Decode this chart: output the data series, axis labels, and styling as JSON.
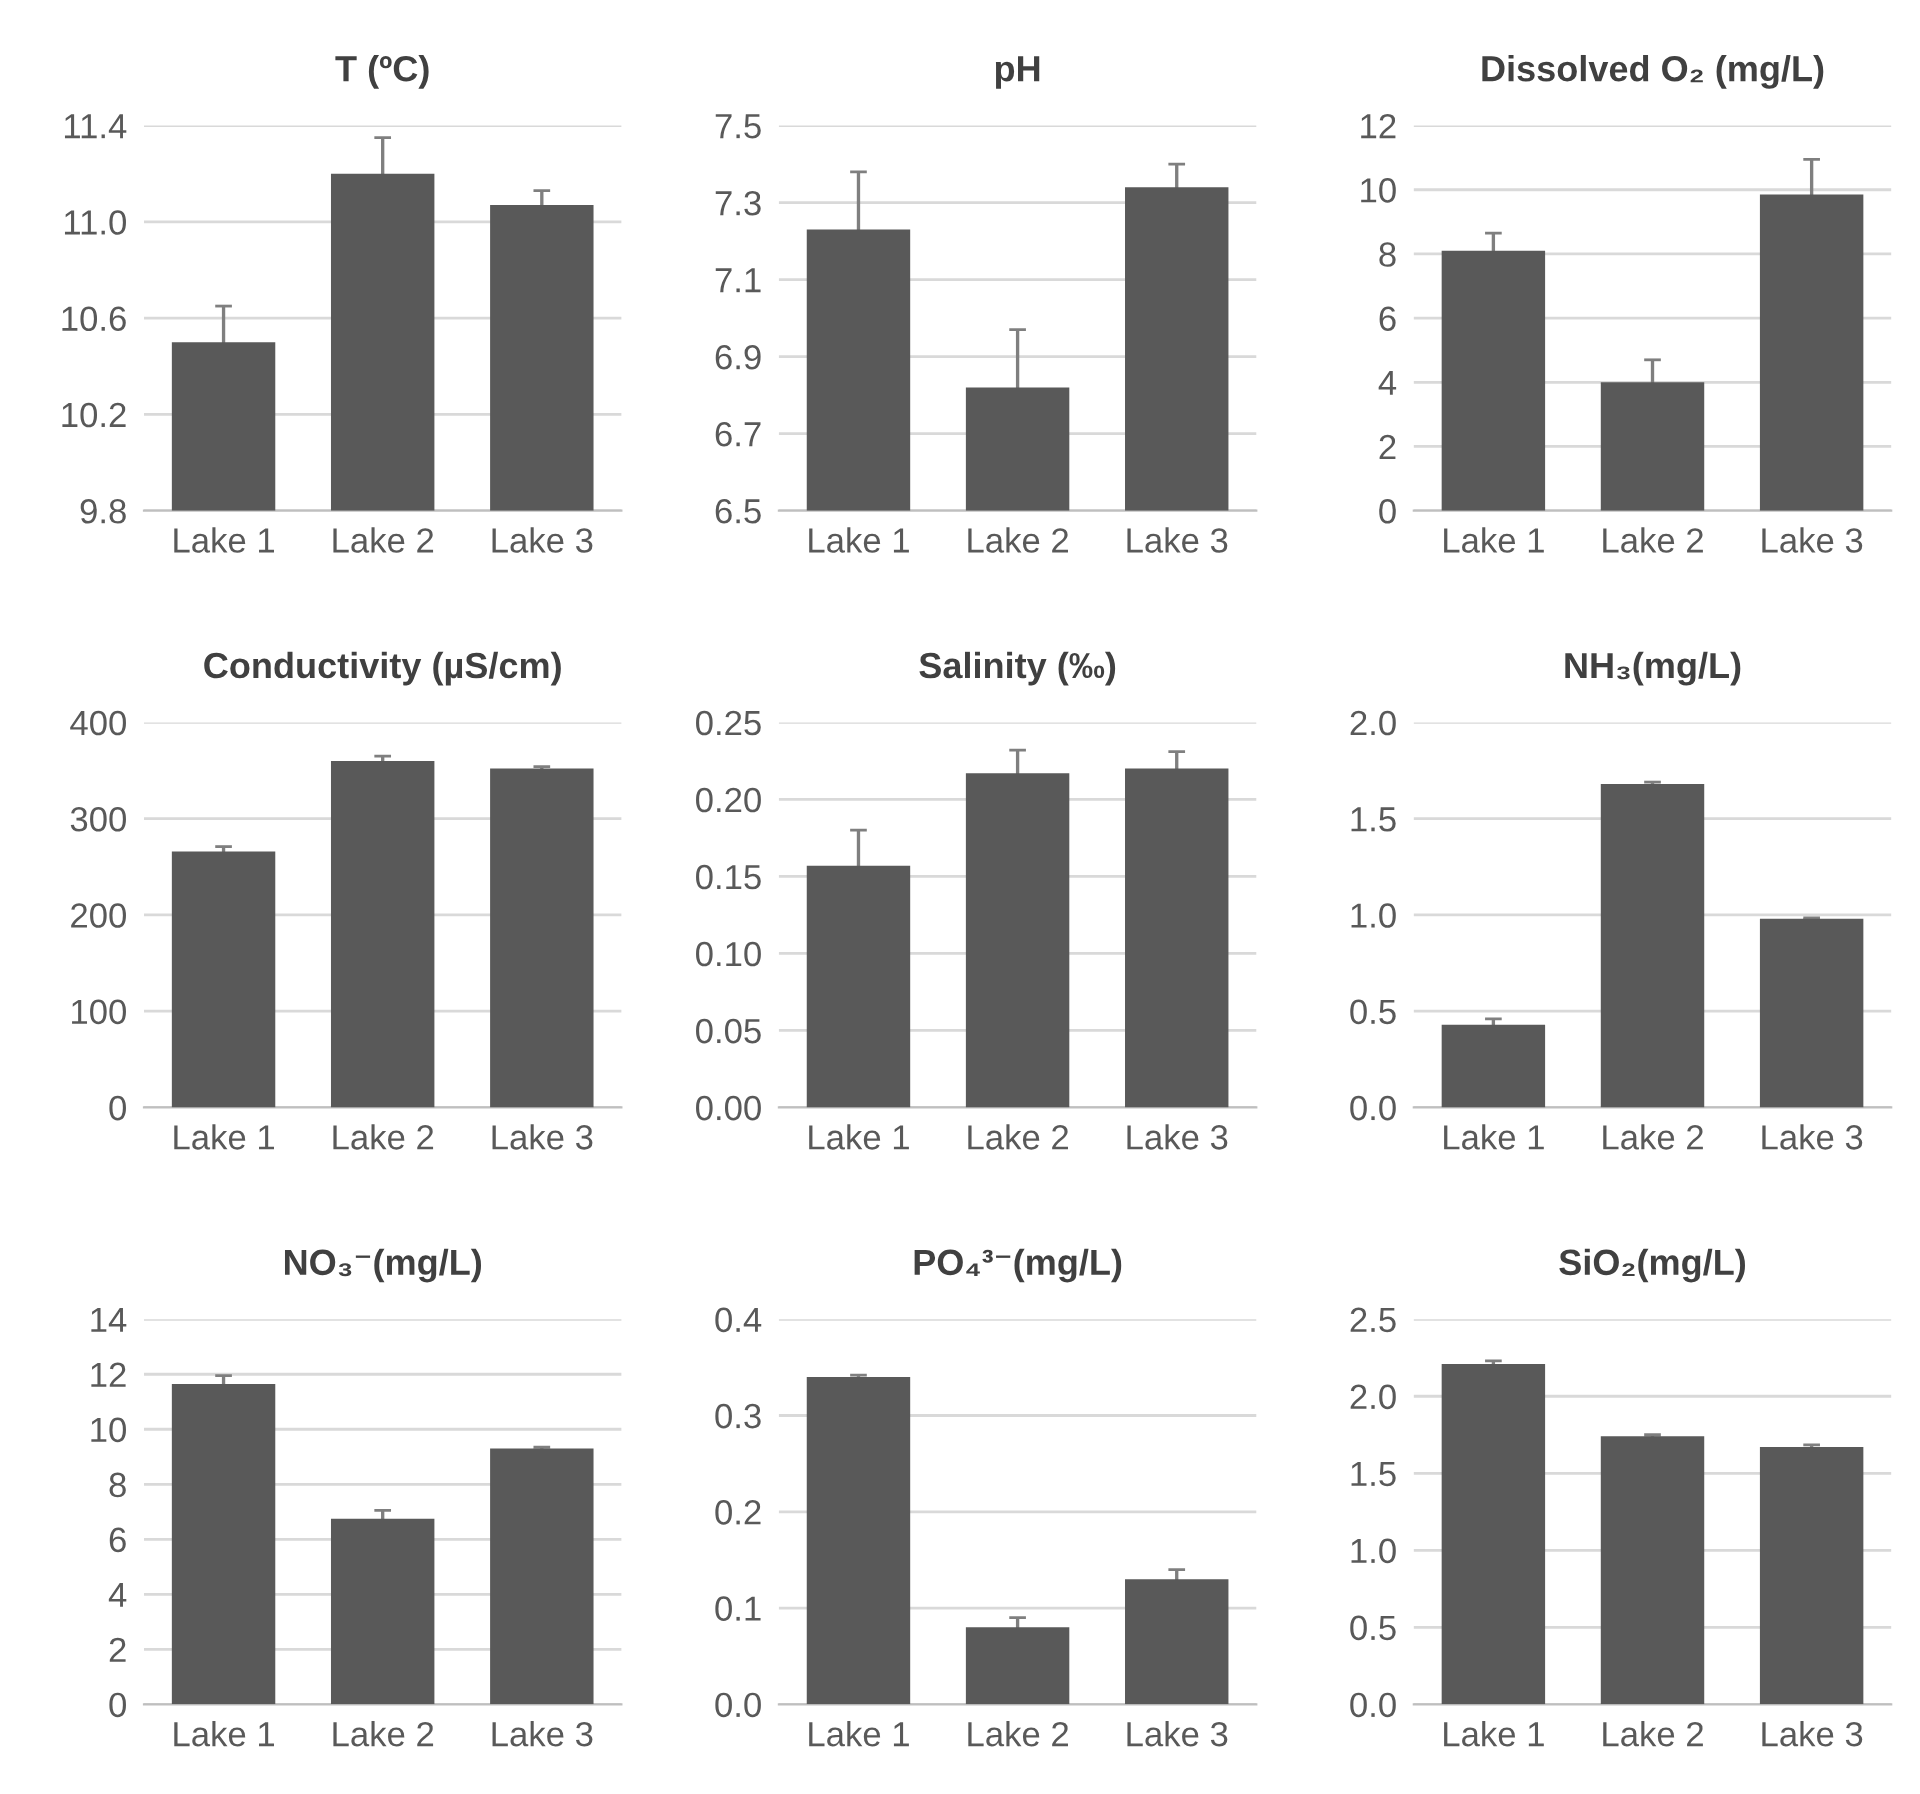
{
  "chart_data": [
    {
      "type": "bar",
      "title": "T (ºC)",
      "categories": [
        "Lake 1",
        "Lake 2",
        "Lake 3"
      ],
      "values": [
        10.5,
        11.2,
        11.07
      ],
      "errors": [
        0.15,
        0.15,
        0.06
      ],
      "color": "#595959",
      "ylim": [
        9.8,
        11.4
      ],
      "yticks": [
        9.8,
        10.2,
        10.6,
        {
          "value": 11.0,
          "label": "11.0"
        },
        11.4
      ],
      "grid": "y"
    },
    {
      "type": "bar",
      "title": "pH",
      "categories": [
        "Lake 1",
        "Lake 2",
        "Lake 3"
      ],
      "values": [
        7.23,
        6.82,
        7.34
      ],
      "errors": [
        0.15,
        0.15,
        0.06
      ],
      "color": "#595959",
      "ylim": [
        6.5,
        7.5
      ],
      "yticks": [
        6.5,
        6.7,
        6.9,
        7.1,
        7.3,
        7.5
      ],
      "grid": "y"
    },
    {
      "type": "bar",
      "title": "Dissolved O₂ (mg/L)",
      "categories": [
        "Lake 1",
        "Lake 2",
        "Lake 3"
      ],
      "values": [
        8.1,
        4.0,
        9.85
      ],
      "errors": [
        0.55,
        0.7,
        1.1
      ],
      "color": "#595959",
      "ylim": [
        0,
        12
      ],
      "yticks": [
        0,
        2,
        4,
        6,
        8,
        10,
        12
      ],
      "grid": "y"
    },
    {
      "type": "bar",
      "title": "Conductivity (µS/cm)",
      "categories": [
        "Lake 1",
        "Lake 2",
        "Lake 3"
      ],
      "values": [
        266,
        360,
        352
      ],
      "errors": [
        5,
        5,
        2
      ],
      "color": "#595959",
      "ylim": [
        0,
        400
      ],
      "yticks": [
        0,
        100,
        200,
        300,
        400
      ],
      "grid": "y"
    },
    {
      "type": "bar",
      "title": "Salinity (‰)",
      "categories": [
        "Lake 1",
        "Lake 2",
        "Lake 3"
      ],
      "values": [
        0.157,
        0.217,
        0.22
      ],
      "errors": [
        0.023,
        0.015,
        0.011
      ],
      "color": "#595959",
      "ylim": [
        0,
        0.25
      ],
      "yticks": [
        {
          "value": 0,
          "label": "0.00"
        },
        0.05,
        {
          "value": 0.1,
          "label": "0.10"
        },
        0.15,
        {
          "value": 0.2,
          "label": "0.20"
        },
        0.25
      ],
      "grid": "y"
    },
    {
      "type": "bar",
      "title": "NH₃(mg/L)",
      "categories": [
        "Lake 1",
        "Lake 2",
        "Lake 3"
      ],
      "values": [
        0.43,
        1.68,
        0.98
      ],
      "errors": [
        0.03,
        0.01,
        0.005
      ],
      "color": "#595959",
      "ylim": [
        0,
        2
      ],
      "yticks": [
        {
          "value": 0,
          "label": "0.0"
        },
        0.5,
        {
          "value": 1,
          "label": "1.0"
        },
        1.5,
        {
          "value": 2,
          "label": "2.0"
        }
      ],
      "grid": "y"
    },
    {
      "type": "bar",
      "title": "NO₃⁻(mg/L)",
      "categories": [
        "Lake 1",
        "Lake 2",
        "Lake 3"
      ],
      "values": [
        11.65,
        6.75,
        9.3
      ],
      "errors": [
        0.3,
        0.3,
        0.05
      ],
      "color": "#595959",
      "ylim": [
        0,
        14
      ],
      "yticks": [
        0,
        2,
        4,
        6,
        8,
        10,
        12,
        14
      ],
      "grid": "y"
    },
    {
      "type": "bar",
      "title": "PO₄³⁻(mg/L)",
      "categories": [
        "Lake 1",
        "Lake 2",
        "Lake 3"
      ],
      "values": [
        0.34,
        0.08,
        0.13
      ],
      "errors": [
        0.002,
        0.01,
        0.01
      ],
      "color": "#595959",
      "ylim": [
        0,
        0.4
      ],
      "yticks": [
        {
          "value": 0,
          "label": "0.0"
        },
        0.1,
        0.2,
        0.3,
        0.4
      ],
      "grid": "y"
    },
    {
      "type": "bar",
      "title": "SiO₂(mg/L)",
      "categories": [
        "Lake 1",
        "Lake 2",
        "Lake 3"
      ],
      "values": [
        2.21,
        1.74,
        1.67
      ],
      "errors": [
        0.02,
        0.01,
        0.015
      ],
      "color": "#595959",
      "ylim": [
        0,
        2.5
      ],
      "yticks": [
        {
          "value": 0,
          "label": "0.0"
        },
        0.5,
        {
          "value": 1,
          "label": "1.0"
        },
        1.5,
        {
          "value": 2,
          "label": "2.0"
        },
        2.5
      ],
      "grid": "y"
    }
  ]
}
